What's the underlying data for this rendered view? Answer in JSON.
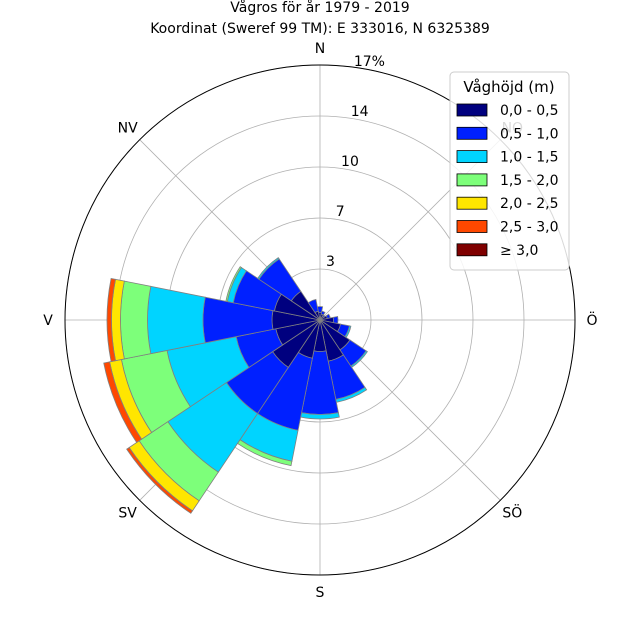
{
  "chart_data": {
    "type": "windrose",
    "title": "Vågros för år 1979 - 2019",
    "subtitle": "Koordinat (Sweref 99 TM): E 333016, N 6325389",
    "directions": [
      "N",
      "NO",
      "Ö",
      "SÖ",
      "S",
      "SV",
      "V",
      "NV"
    ],
    "radial_ticks": [
      "3",
      "7",
      "10",
      "14",
      "17%"
    ],
    "radial_tick_values": [
      3.4,
      6.8,
      10.2,
      13.6,
      17
    ],
    "rmax": 17,
    "legend": {
      "title": "Våghöjd (m)",
      "placement": "top-right",
      "entries": [
        "0,0 - 0,5",
        "0,5 - 1,0",
        "1,0 - 1,5",
        "1,5 - 2,0",
        "2,0 - 2,5",
        "2,5 - 3,0",
        "≥ 3,0"
      ]
    },
    "bin_colors": [
      "#00007f",
      "#0020ff",
      "#00d4ff",
      "#7dff7a",
      "#ffe600",
      "#ff4800",
      "#7f0000"
    ],
    "sector_width_deg": 22.5,
    "sectors": [
      {
        "angle": 0,
        "values": [
          0.5,
          0.4,
          0,
          0,
          0,
          0,
          0
        ]
      },
      {
        "angle": 22.5,
        "values": [
          0.4,
          0.2,
          0,
          0,
          0,
          0,
          0
        ]
      },
      {
        "angle": 45,
        "values": [
          0.3,
          0.1,
          0,
          0,
          0,
          0,
          0
        ]
      },
      {
        "angle": 67.5,
        "values": [
          0.5,
          0.2,
          0,
          0,
          0,
          0,
          0
        ]
      },
      {
        "angle": 90,
        "values": [
          0.9,
          0.3,
          0,
          0,
          0,
          0,
          0
        ]
      },
      {
        "angle": 112.5,
        "values": [
          1.4,
          0.6,
          0.1,
          0,
          0,
          0,
          0
        ]
      },
      {
        "angle": 135,
        "values": [
          2.4,
          1.3,
          0.1,
          0,
          0,
          0,
          0
        ]
      },
      {
        "angle": 157.5,
        "values": [
          2.8,
          2.6,
          0.2,
          0,
          0,
          0,
          0
        ]
      },
      {
        "angle": 180,
        "values": [
          2.1,
          4.2,
          0.3,
          0,
          0,
          0,
          0
        ]
      },
      {
        "angle": 202.5,
        "values": [
          2.6,
          4.9,
          2.1,
          0.3,
          0,
          0,
          0
        ]
      },
      {
        "angle": 225,
        "values": [
          3.8,
          3.7,
          4.7,
          2.3,
          0.8,
          0.2,
          0
        ]
      },
      {
        "angle": 247.5,
        "values": [
          3.0,
          2.7,
          4.7,
          3.1,
          0.8,
          0.4,
          0
        ]
      },
      {
        "angle": 270,
        "values": [
          3.2,
          4.6,
          3.7,
          1.8,
          0.6,
          0.3,
          0
        ]
      },
      {
        "angle": 292.5,
        "values": [
          3.1,
          2.8,
          0.4,
          0.1,
          0,
          0,
          0
        ]
      },
      {
        "angle": 315,
        "values": [
          2.3,
          2.6,
          0.1,
          0,
          0,
          0,
          0
        ]
      },
      {
        "angle": 337.5,
        "values": [
          0.6,
          0.8,
          0,
          0,
          0,
          0,
          0
        ]
      }
    ]
  }
}
